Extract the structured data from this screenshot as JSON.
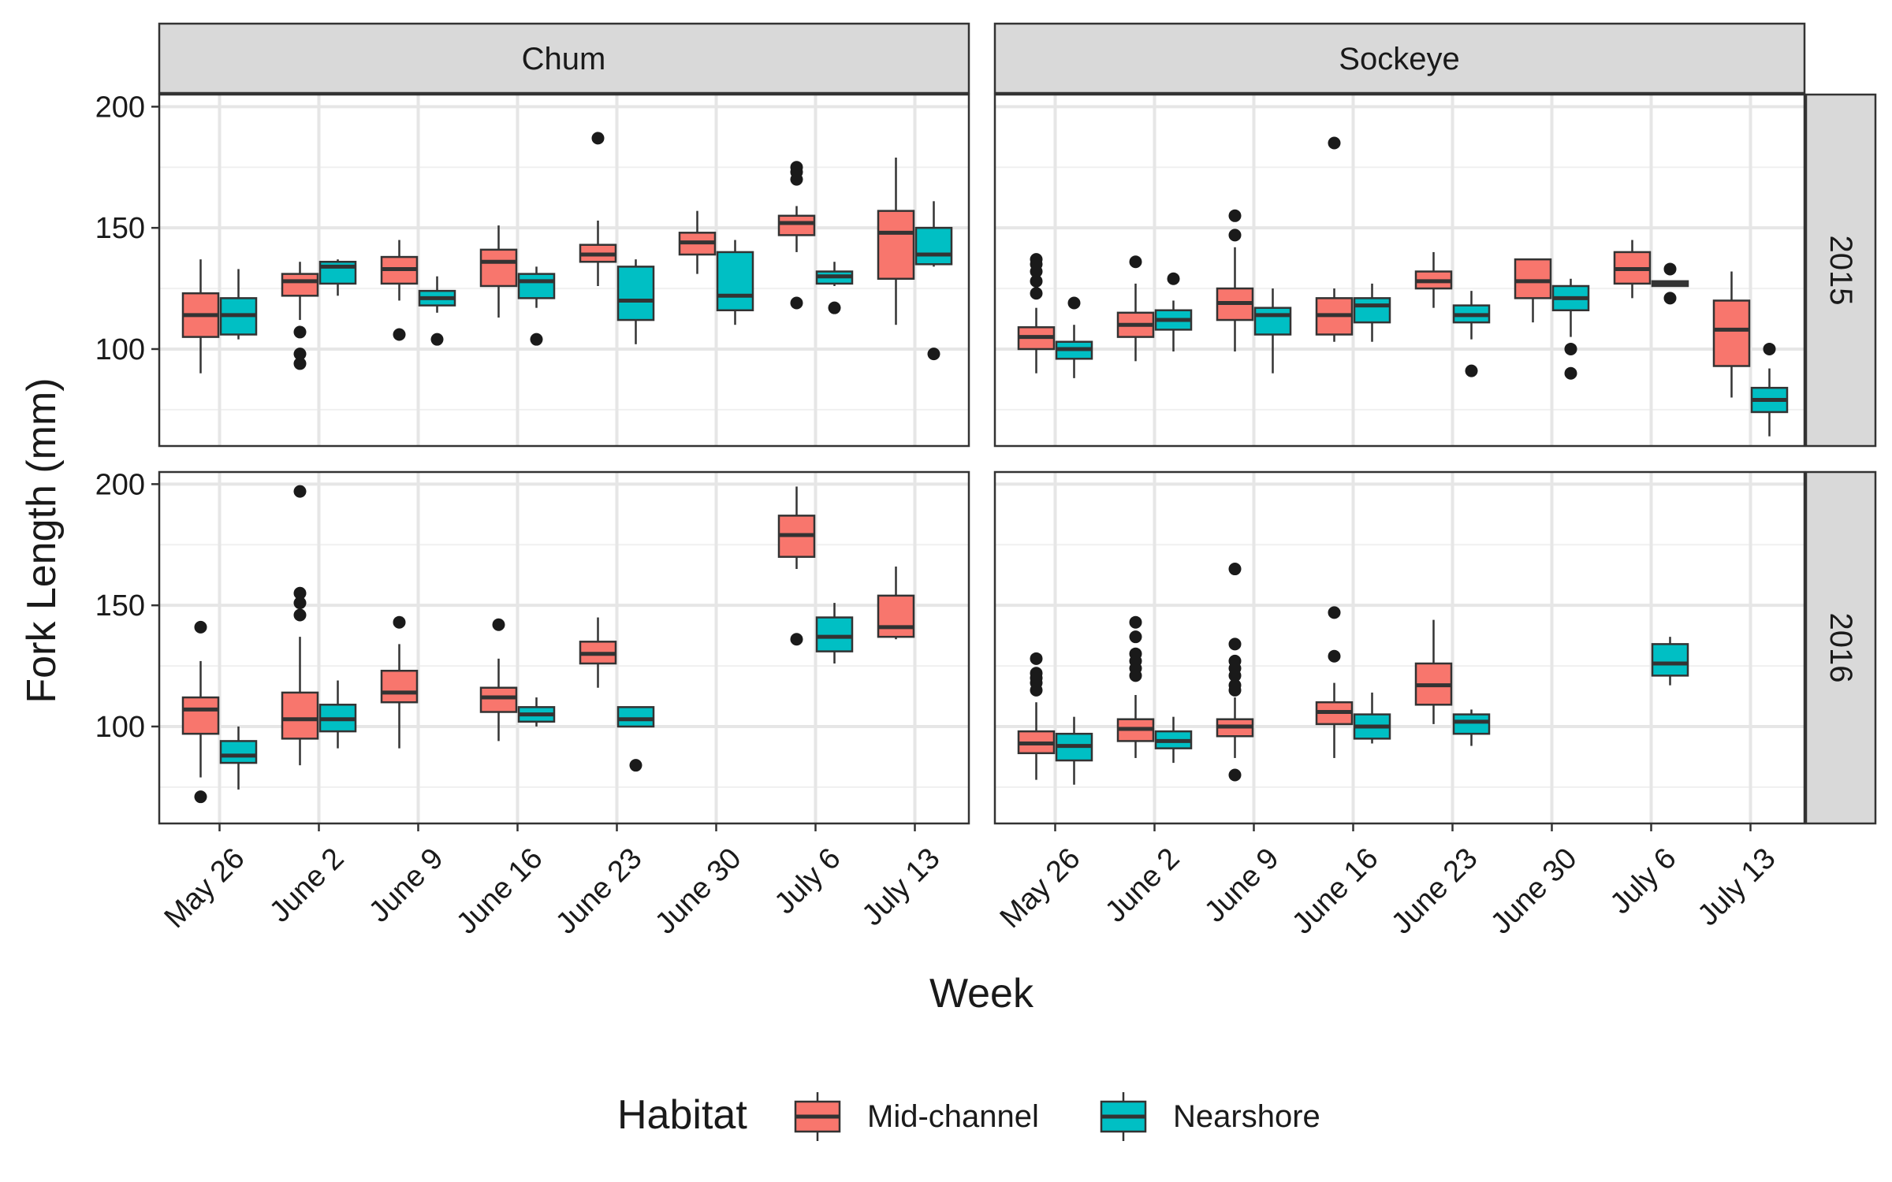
{
  "chart_data": {
    "type": "boxplot",
    "xlabel": "Week",
    "ylabel": "Fork Length (mm)",
    "categories": [
      "May 26",
      "June 2",
      "June 9",
      "June 16",
      "June 23",
      "June 30",
      "July 6",
      "July 13"
    ],
    "ylim": [
      60,
      205
    ],
    "yticks": [
      100,
      150,
      200
    ],
    "facet_columns": [
      "Chum",
      "Sockeye"
    ],
    "facet_rows": [
      "2015",
      "2016"
    ],
    "legend": {
      "title": "Habitat",
      "position": "bottom",
      "entries": [
        {
          "name": "Mid-channel",
          "color": "#F8766D"
        },
        {
          "name": "Nearshore",
          "color": "#00BFC4"
        }
      ]
    },
    "panels": [
      {
        "species": "Chum",
        "year": "2015",
        "boxes": [
          {
            "week": "May 26",
            "habitat": "Mid-channel",
            "min": 90,
            "q1": 105,
            "median": 114,
            "q3": 123,
            "max": 137,
            "outliers": []
          },
          {
            "week": "May 26",
            "habitat": "Nearshore",
            "min": 104,
            "q1": 106,
            "median": 114,
            "q3": 121,
            "max": 133,
            "outliers": []
          },
          {
            "week": "June 2",
            "habitat": "Mid-channel",
            "min": 112,
            "q1": 122,
            "median": 128,
            "q3": 131,
            "max": 136,
            "outliers": [
              107,
              98,
              94
            ]
          },
          {
            "week": "June 2",
            "habitat": "Nearshore",
            "min": 122,
            "q1": 127,
            "median": 134,
            "q3": 136,
            "max": 137,
            "outliers": []
          },
          {
            "week": "June 9",
            "habitat": "Mid-channel",
            "min": 120,
            "q1": 127,
            "median": 133,
            "q3": 138,
            "max": 145,
            "outliers": [
              106
            ]
          },
          {
            "week": "June 9",
            "habitat": "Nearshore",
            "min": 115,
            "q1": 118,
            "median": 121,
            "q3": 124,
            "max": 130,
            "outliers": [
              104
            ]
          },
          {
            "week": "June 16",
            "habitat": "Mid-channel",
            "min": 113,
            "q1": 126,
            "median": 136,
            "q3": 141,
            "max": 151,
            "outliers": []
          },
          {
            "week": "June 16",
            "habitat": "Nearshore",
            "min": 117,
            "q1": 121,
            "median": 128,
            "q3": 131,
            "max": 134,
            "outliers": [
              104
            ]
          },
          {
            "week": "June 23",
            "habitat": "Mid-channel",
            "min": 126,
            "q1": 136,
            "median": 139,
            "q3": 143,
            "max": 153,
            "outliers": [
              187
            ]
          },
          {
            "week": "June 23",
            "habitat": "Nearshore",
            "min": 102,
            "q1": 112,
            "median": 120,
            "q3": 134,
            "max": 137,
            "outliers": []
          },
          {
            "week": "June 30",
            "habitat": "Mid-channel",
            "min": 131,
            "q1": 139,
            "median": 144,
            "q3": 148,
            "max": 157,
            "outliers": []
          },
          {
            "week": "June 30",
            "habitat": "Nearshore",
            "min": 110,
            "q1": 116,
            "median": 122,
            "q3": 140,
            "max": 145,
            "outliers": []
          },
          {
            "week": "July 6",
            "habitat": "Mid-channel",
            "min": 140,
            "q1": 147,
            "median": 152,
            "q3": 155,
            "max": 159,
            "outliers": [
              175,
              173,
              170,
              119
            ]
          },
          {
            "week": "July 6",
            "habitat": "Nearshore",
            "min": 126,
            "q1": 127,
            "median": 130,
            "q3": 132,
            "max": 136,
            "outliers": [
              117
            ]
          },
          {
            "week": "July 13",
            "habitat": "Mid-channel",
            "min": 110,
            "q1": 129,
            "median": 148,
            "q3": 157,
            "max": 179,
            "outliers": []
          },
          {
            "week": "July 13",
            "habitat": "Nearshore",
            "min": 134,
            "q1": 135,
            "median": 139,
            "q3": 150,
            "max": 161,
            "outliers": [
              98
            ]
          }
        ]
      },
      {
        "species": "Sockeye",
        "year": "2015",
        "boxes": [
          {
            "week": "May 26",
            "habitat": "Mid-channel",
            "min": 90,
            "q1": 100,
            "median": 105,
            "q3": 109,
            "max": 117,
            "outliers": [
              137,
              135,
              132,
              128,
              123
            ]
          },
          {
            "week": "May 26",
            "habitat": "Nearshore",
            "min": 88,
            "q1": 96,
            "median": 100,
            "q3": 103,
            "max": 110,
            "outliers": [
              119
            ]
          },
          {
            "week": "June 2",
            "habitat": "Mid-channel",
            "min": 95,
            "q1": 105,
            "median": 110,
            "q3": 115,
            "max": 127,
            "outliers": [
              136
            ]
          },
          {
            "week": "June 2",
            "habitat": "Nearshore",
            "min": 99,
            "q1": 108,
            "median": 112,
            "q3": 116,
            "max": 120,
            "outliers": [
              129
            ]
          },
          {
            "week": "June 9",
            "habitat": "Mid-channel",
            "min": 99,
            "q1": 112,
            "median": 119,
            "q3": 125,
            "max": 142,
            "outliers": [
              155,
              147
            ]
          },
          {
            "week": "June 9",
            "habitat": "Nearshore",
            "min": 90,
            "q1": 106,
            "median": 114,
            "q3": 117,
            "max": 125,
            "outliers": []
          },
          {
            "week": "June 16",
            "habitat": "Mid-channel",
            "min": 103,
            "q1": 106,
            "median": 114,
            "q3": 121,
            "max": 125,
            "outliers": [
              185
            ]
          },
          {
            "week": "June 16",
            "habitat": "Nearshore",
            "min": 103,
            "q1": 111,
            "median": 118,
            "q3": 121,
            "max": 127,
            "outliers": []
          },
          {
            "week": "June 23",
            "habitat": "Mid-channel",
            "min": 117,
            "q1": 125,
            "median": 128,
            "q3": 132,
            "max": 140,
            "outliers": []
          },
          {
            "week": "June 23",
            "habitat": "Nearshore",
            "min": 104,
            "q1": 111,
            "median": 114,
            "q3": 118,
            "max": 124,
            "outliers": [
              91
            ]
          },
          {
            "week": "June 30",
            "habitat": "Mid-channel",
            "min": 111,
            "q1": 121,
            "median": 128,
            "q3": 137,
            "max": 137,
            "outliers": []
          },
          {
            "week": "June 30",
            "habitat": "Nearshore",
            "min": 105,
            "q1": 116,
            "median": 121,
            "q3": 126,
            "max": 129,
            "outliers": [
              100,
              90
            ]
          },
          {
            "week": "July 6",
            "habitat": "Mid-channel",
            "min": 121,
            "q1": 127,
            "median": 133,
            "q3": 140,
            "max": 145,
            "outliers": []
          },
          {
            "week": "July 6",
            "habitat": "Nearshore",
            "min": 126,
            "q1": 126,
            "median": 127,
            "q3": 128,
            "max": 128,
            "outliers": [
              133,
              121
            ]
          },
          {
            "week": "July 13",
            "habitat": "Mid-channel",
            "min": 80,
            "q1": 93,
            "median": 108,
            "q3": 120,
            "max": 132,
            "outliers": []
          },
          {
            "week": "July 13",
            "habitat": "Nearshore",
            "min": 64,
            "q1": 74,
            "median": 79,
            "q3": 84,
            "max": 92,
            "outliers": [
              100
            ]
          }
        ]
      },
      {
        "species": "Chum",
        "year": "2016",
        "boxes": [
          {
            "week": "May 26",
            "habitat": "Mid-channel",
            "min": 79,
            "q1": 97,
            "median": 107,
            "q3": 112,
            "max": 127,
            "outliers": [
              141,
              71
            ]
          },
          {
            "week": "May 26",
            "habitat": "Nearshore",
            "min": 74,
            "q1": 85,
            "median": 88,
            "q3": 94,
            "max": 100,
            "outliers": []
          },
          {
            "week": "June 2",
            "habitat": "Mid-channel",
            "min": 84,
            "q1": 95,
            "median": 103,
            "q3": 114,
            "max": 137,
            "outliers": [
              197,
              155,
              151,
              146
            ]
          },
          {
            "week": "June 2",
            "habitat": "Nearshore",
            "min": 91,
            "q1": 98,
            "median": 103,
            "q3": 109,
            "max": 119,
            "outliers": []
          },
          {
            "week": "June 9",
            "habitat": "Mid-channel",
            "min": 91,
            "q1": 110,
            "median": 114,
            "q3": 123,
            "max": 134,
            "outliers": [
              143
            ]
          },
          {
            "week": "June 16",
            "habitat": "Mid-channel",
            "min": 94,
            "q1": 106,
            "median": 112,
            "q3": 116,
            "max": 128,
            "outliers": [
              142
            ]
          },
          {
            "week": "June 16",
            "habitat": "Nearshore",
            "min": 100,
            "q1": 102,
            "median": 105,
            "q3": 108,
            "max": 112,
            "outliers": []
          },
          {
            "week": "June 23",
            "habitat": "Mid-channel",
            "min": 116,
            "q1": 126,
            "median": 130,
            "q3": 135,
            "max": 145,
            "outliers": []
          },
          {
            "week": "June 23",
            "habitat": "Nearshore",
            "min": 100,
            "q1": 100,
            "median": 103,
            "q3": 108,
            "max": 108,
            "outliers": [
              84
            ]
          },
          {
            "week": "July 6",
            "habitat": "Mid-channel",
            "min": 165,
            "q1": 170,
            "median": 179,
            "q3": 187,
            "max": 199,
            "outliers": [
              136
            ]
          },
          {
            "week": "July 6",
            "habitat": "Nearshore",
            "min": 126,
            "q1": 131,
            "median": 137,
            "q3": 145,
            "max": 151,
            "outliers": []
          },
          {
            "week": "July 13",
            "habitat": "Mid-channel",
            "min": 136,
            "q1": 137,
            "median": 141,
            "q3": 154,
            "max": 166,
            "outliers": []
          }
        ]
      },
      {
        "species": "Sockeye",
        "year": "2016",
        "boxes": [
          {
            "week": "May 26",
            "habitat": "Mid-channel",
            "min": 78,
            "q1": 89,
            "median": 93,
            "q3": 98,
            "max": 110,
            "outliers": [
              128,
              122,
              120,
              118,
              115
            ]
          },
          {
            "week": "May 26",
            "habitat": "Nearshore",
            "min": 76,
            "q1": 86,
            "median": 92,
            "q3": 97,
            "max": 104,
            "outliers": []
          },
          {
            "week": "June 2",
            "habitat": "Mid-channel",
            "min": 87,
            "q1": 94,
            "median": 99,
            "q3": 103,
            "max": 113,
            "outliers": [
              143,
              137,
              130,
              127,
              124,
              121
            ]
          },
          {
            "week": "June 2",
            "habitat": "Nearshore",
            "min": 85,
            "q1": 91,
            "median": 94,
            "q3": 98,
            "max": 104,
            "outliers": []
          },
          {
            "week": "June 9",
            "habitat": "Mid-channel",
            "min": 87,
            "q1": 96,
            "median": 100,
            "q3": 103,
            "max": 112,
            "outliers": [
              165,
              134,
              127,
              124,
              121,
              117,
              115,
              80
            ]
          },
          {
            "week": "June 16",
            "habitat": "Mid-channel",
            "min": 87,
            "q1": 101,
            "median": 106,
            "q3": 110,
            "max": 118,
            "outliers": [
              147,
              129
            ]
          },
          {
            "week": "June 16",
            "habitat": "Nearshore",
            "min": 93,
            "q1": 95,
            "median": 100,
            "q3": 105,
            "max": 114,
            "outliers": []
          },
          {
            "week": "June 23",
            "habitat": "Mid-channel",
            "min": 101,
            "q1": 109,
            "median": 117,
            "q3": 126,
            "max": 144,
            "outliers": []
          },
          {
            "week": "June 23",
            "habitat": "Nearshore",
            "min": 92,
            "q1": 97,
            "median": 102,
            "q3": 105,
            "max": 107,
            "outliers": []
          },
          {
            "week": "July 6",
            "habitat": "Nearshore",
            "min": 117,
            "q1": 121,
            "median": 126,
            "q3": 134,
            "max": 137,
            "outliers": []
          }
        ]
      }
    ]
  }
}
